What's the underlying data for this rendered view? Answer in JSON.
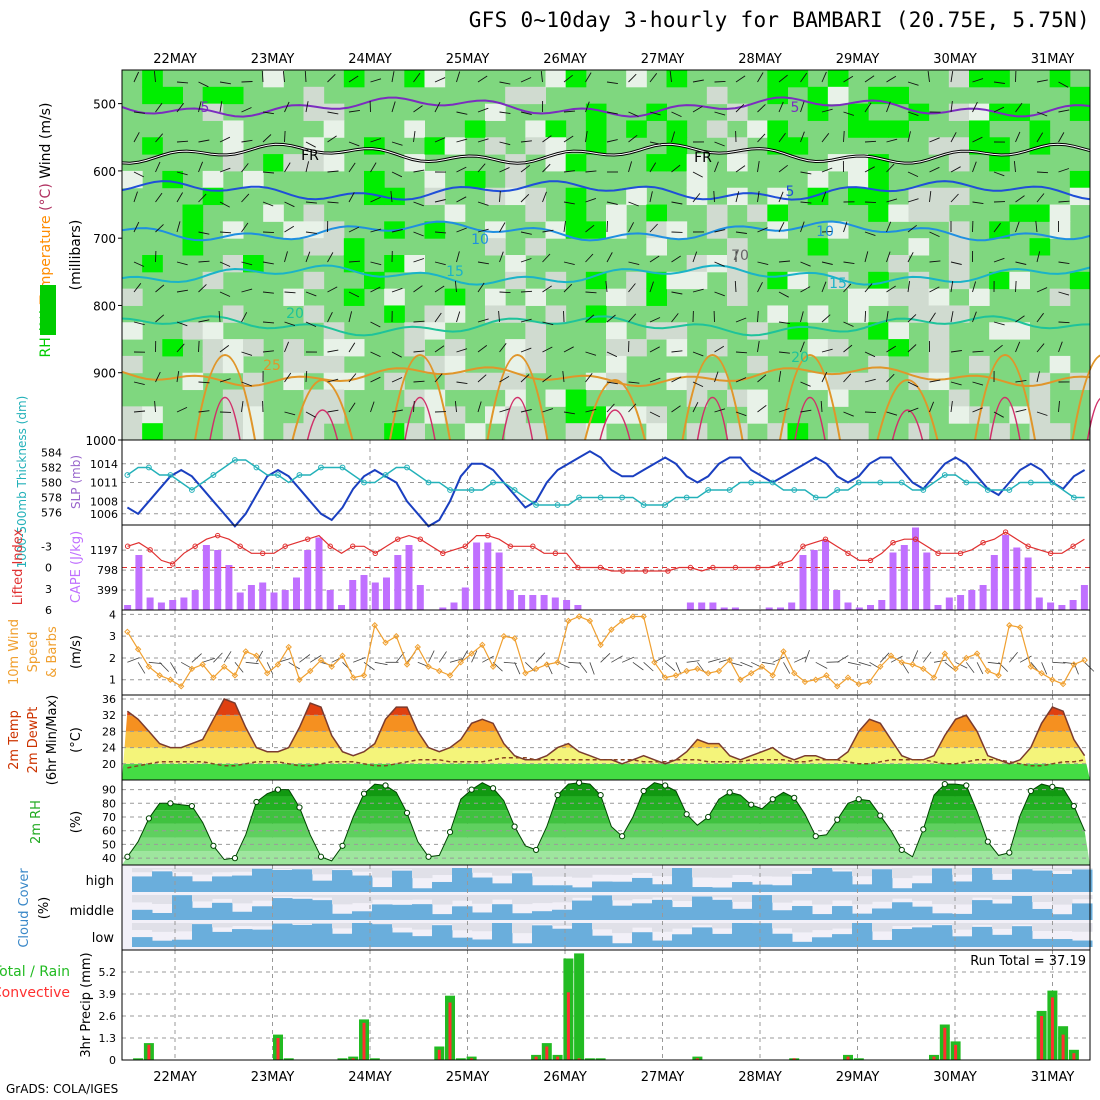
{
  "title": "GFS 0~10day 3-hourly for BAMBARI (20.75E, 5.75N)",
  "footer": "GrADS: COLA/IGES",
  "chart_data": [
    {
      "type": "heatmap",
      "panel": "upper-air",
      "label_parts": [
        {
          "text": "RH (%)",
          "color": "#00cc00"
        },
        {
          "text": "Temperature",
          "color": "#ff8c00"
        },
        {
          "text": "(°C)",
          "color": "#b03060"
        },
        {
          "text": "Wind (m/s)",
          "color": "#000000"
        }
      ],
      "unit_label": "(millibars)",
      "dates": [
        "22MAY",
        "23MAY",
        "24MAY",
        "25MAY",
        "26MAY",
        "27MAY",
        "28MAY",
        "29MAY",
        "30MAY",
        "31MAY"
      ],
      "yticks": [
        500,
        600,
        700,
        800,
        900,
        1000
      ],
      "ylim": [
        1000,
        450
      ],
      "freezing_label": "FR",
      "contour_labels": [
        "5",
        "5",
        "FR",
        "FR",
        "5",
        "10",
        "10",
        "15",
        "15",
        "20",
        "20",
        "25",
        "70"
      ],
      "isotherms": [
        {
          "label": "-5",
          "pressure": 505,
          "color": "#7b2cbf"
        },
        {
          "label": "0",
          "pressure": 575,
          "color": "#000000"
        },
        {
          "label": "5",
          "pressure": 630,
          "color": "#1f4fd8"
        },
        {
          "label": "10",
          "pressure": 690,
          "color": "#1f8fe0"
        },
        {
          "label": "15",
          "pressure": 755,
          "color": "#1ab3c8"
        },
        {
          "label": "20",
          "pressure": 830,
          "color": "#1ec39a"
        },
        {
          "label": "25",
          "pressure": 905,
          "color": "#e0962a"
        }
      ]
    },
    {
      "type": "line",
      "panel": "thickness-slp",
      "label_left": "1000-500mb Thickness (dm)",
      "label_right": "SLP (mb)",
      "yticks_left": [
        576,
        578,
        580,
        582,
        584
      ],
      "yticks_right": [
        1006,
        1008,
        1011,
        1014
      ],
      "series": [
        {
          "name": "SLP (mb)",
          "color": "#1a3fc0",
          "values": [
            1007,
            1006,
            1008,
            1010,
            1012,
            1013,
            1012,
            1010,
            1008,
            1006,
            1004,
            1006,
            1009,
            1012,
            1013,
            1012,
            1010,
            1008,
            1006,
            1005,
            1007,
            1010,
            1012,
            1013,
            1012,
            1011,
            1008,
            1006,
            1004,
            1005,
            1008,
            1012,
            1014,
            1014,
            1013,
            1011,
            1009,
            1007,
            1008,
            1011,
            1013,
            1014,
            1015,
            1016,
            1015,
            1013,
            1012,
            1012,
            1013,
            1014,
            1015,
            1014,
            1012,
            1011,
            1012,
            1014,
            1015,
            1015,
            1013,
            1012,
            1011,
            1012,
            1013,
            1014,
            1015,
            1014,
            1012,
            1011,
            1012,
            1014,
            1015,
            1015,
            1013,
            1011,
            1010,
            1012,
            1014,
            1015,
            1014,
            1012,
            1010,
            1009,
            1011,
            1013,
            1014,
            1013,
            1011,
            1010,
            1012,
            1013
          ]
        },
        {
          "name": "Thickness (dm)",
          "color": "#23b1b9",
          "values": [
            581,
            582,
            582,
            581,
            581,
            580,
            579,
            580,
            581,
            582,
            583,
            583,
            582,
            581,
            581,
            580,
            581,
            581,
            582,
            582,
            582,
            581,
            580,
            580,
            581,
            582,
            582,
            581,
            580,
            580,
            579,
            579,
            579,
            579,
            580,
            580,
            579,
            578,
            577,
            577,
            577,
            577,
            578,
            578,
            578,
            578,
            578,
            578,
            577,
            577,
            577,
            578,
            578,
            578,
            579,
            579,
            579,
            580,
            580,
            580,
            580,
            579,
            579,
            579,
            578,
            578,
            579,
            579,
            580,
            580,
            580,
            580,
            580,
            579,
            579,
            580,
            581,
            581,
            580,
            580,
            579,
            579,
            579,
            580,
            580,
            580,
            580,
            579,
            578,
            578
          ]
        }
      ]
    },
    {
      "type": "bar",
      "panel": "cape-li",
      "label_left": "Lifted Index",
      "label_right": "CAPE (J/kg)",
      "yticks_left": [
        -3,
        0,
        3,
        6
      ],
      "yticks_right": [
        399,
        798,
        1197
      ],
      "series": [
        {
          "name": "CAPE (J/kg)",
          "color": "#c070ff",
          "values": [
            100,
            1100,
            250,
            150,
            200,
            250,
            400,
            1300,
            1200,
            900,
            350,
            500,
            550,
            350,
            400,
            650,
            1200,
            1450,
            400,
            100,
            600,
            700,
            550,
            650,
            1100,
            1300,
            500,
            0,
            50,
            150,
            450,
            1350,
            1350,
            1150,
            400,
            300,
            300,
            300,
            250,
            200,
            100,
            0,
            0,
            0,
            0,
            0,
            0,
            0,
            0,
            0,
            150,
            150,
            150,
            50,
            50,
            0,
            0,
            50,
            50,
            150,
            1100,
            1200,
            1400,
            400,
            150,
            50,
            100,
            200,
            1150,
            1300,
            1650,
            1150,
            100,
            250,
            300,
            400,
            500,
            1100,
            1500,
            1250,
            1050,
            250,
            150,
            100,
            200,
            500
          ]
        },
        {
          "name": "Lifted Index",
          "color": "#e03030",
          "values": [
            -3,
            -3.5,
            -2.5,
            -1,
            -0.5,
            -2,
            -3,
            -4,
            -4.5,
            -4,
            -3,
            -2,
            -2,
            -2,
            -3,
            -3.5,
            -4,
            -4.5,
            -3,
            -2,
            -3,
            -3,
            -2,
            -3,
            -4,
            -4.5,
            -4,
            -3,
            -2,
            -2.5,
            -3,
            -4.5,
            -4.5,
            -4,
            -3,
            -3,
            -3,
            -2,
            -2,
            -2,
            0,
            0,
            0,
            0.5,
            0.5,
            0.5,
            0.5,
            0.5,
            0.5,
            0,
            0,
            0.5,
            0,
            0,
            0,
            0,
            0,
            0,
            -0.5,
            -1,
            -3,
            -3.5,
            -4,
            -3,
            -2,
            -1,
            -1,
            -2,
            -3.5,
            -4,
            -4,
            -3,
            -2,
            -2,
            -2,
            -2.5,
            -3.5,
            -4,
            -5,
            -4,
            -3,
            -2.5,
            -2,
            -2,
            -3,
            -4
          ]
        }
      ]
    },
    {
      "type": "line",
      "panel": "wind10m",
      "label_lines": [
        "10m Wind",
        "Speed",
        "& Barbs"
      ],
      "unit_label": "(m/s)",
      "yticks": [
        1,
        2,
        3,
        4
      ],
      "ylim": [
        0.3,
        4.2
      ],
      "series": [
        {
          "name": "10m Wind Speed",
          "color": "#f0a030",
          "values": [
            3.2,
            2.4,
            1.6,
            1.2,
            1.0,
            0.7,
            1.5,
            1.7,
            1.1,
            1.6,
            1.2,
            2.3,
            2.1,
            1.3,
            1.7,
            2.5,
            1.0,
            1.4,
            1.9,
            1.6,
            2.1,
            1.1,
            1.2,
            3.5,
            2.7,
            3.0,
            1.7,
            2.5,
            1.6,
            1.4,
            1.2,
            1.8,
            2.2,
            2.6,
            1.6,
            3.0,
            2.9,
            1.3,
            1.5,
            1.7,
            1.8,
            3.7,
            3.9,
            3.7,
            2.6,
            3.3,
            3.7,
            3.9,
            3.9,
            1.8,
            1.1,
            1.2,
            1.4,
            1.5,
            1.3,
            1.4,
            1.9,
            1.0,
            1.3,
            1.6,
            1.2,
            2.3,
            1.3,
            0.9,
            1.0,
            1.2,
            0.7,
            1.1,
            0.8,
            0.9,
            1.6,
            2.1,
            1.8,
            1.7,
            1.5,
            1.1,
            2.2,
            1.5,
            2.0,
            2.2,
            1.4,
            1.2,
            3.5,
            3.4,
            1.6,
            1.3,
            1.0,
            0.8,
            1.7,
            1.9
          ]
        }
      ]
    },
    {
      "type": "area",
      "panel": "temp2m",
      "label_lines": [
        "2m Temp",
        "2m DewPt",
        "(6hr Min/Max)"
      ],
      "unit_label": "(°C)",
      "yticks": [
        20,
        24,
        28,
        32,
        36
      ],
      "ylim": [
        16,
        37
      ],
      "series": [
        {
          "name": "2m Temp",
          "color": "#7a3b2e",
          "values": [
            33,
            31,
            28,
            25,
            24,
            24,
            25,
            26,
            31,
            36,
            35,
            29,
            24,
            23,
            23,
            24,
            29,
            35,
            34,
            27,
            23,
            22,
            23,
            25,
            31,
            34,
            34,
            28,
            24,
            23,
            24,
            26,
            30,
            31,
            30,
            25,
            22,
            21,
            21,
            22,
            24,
            25,
            23,
            22,
            21,
            21,
            20,
            21,
            22,
            21,
            20,
            21,
            23,
            26,
            25,
            25,
            22,
            21,
            22,
            23,
            24,
            22,
            21,
            22,
            22,
            21,
            21,
            23,
            28,
            31,
            30,
            26,
            22,
            21,
            21,
            22,
            27,
            31,
            32,
            28,
            22,
            21,
            20,
            21,
            24,
            30,
            34,
            33,
            26,
            22
          ]
        },
        {
          "name": "2m DewPt",
          "color": "#884422",
          "values": [
            19,
            19.5,
            20,
            20.5,
            20.5,
            20.5,
            20.5,
            20.5,
            20,
            19.5,
            19.5,
            20,
            20.5,
            20.5,
            20.5,
            20,
            19.5,
            19.5,
            20,
            20.5,
            20.5,
            20.5,
            20,
            19.5,
            19.5,
            20,
            20.5,
            21,
            21,
            21,
            20.5,
            20.5,
            20.5,
            20.5,
            21,
            21.5,
            21.5,
            21.5,
            21,
            21,
            21,
            21,
            21,
            21,
            21,
            21,
            21,
            21,
            20.5,
            20.5,
            20.5,
            21,
            21,
            21,
            20.5,
            20.5,
            20.5,
            20.5,
            21,
            21,
            21,
            21,
            20.5,
            20.5,
            21,
            21,
            21,
            20.5,
            20,
            20,
            20.5,
            21,
            21,
            21,
            21,
            20.5,
            20,
            20,
            20.5,
            21,
            21,
            21,
            20.5,
            20,
            19.5,
            19.5,
            20,
            20.5,
            20.5,
            21
          ]
        }
      ]
    },
    {
      "type": "area",
      "panel": "rh2m",
      "label": "2m RH",
      "unit_label": "(%)",
      "yticks": [
        40,
        50,
        60,
        70,
        80,
        90
      ],
      "ylim": [
        35,
        97
      ],
      "series": [
        {
          "name": "2m RH",
          "color": "#008000",
          "values": [
            41,
            52,
            69,
            80,
            80,
            79,
            78,
            66,
            49,
            39,
            40,
            57,
            81,
            87,
            90,
            90,
            77,
            57,
            41,
            38,
            49,
            70,
            87,
            94,
            93,
            88,
            73,
            52,
            41,
            42,
            59,
            83,
            90,
            95,
            91,
            82,
            63,
            49,
            46,
            63,
            86,
            94,
            95,
            94,
            86,
            63,
            56,
            70,
            89,
            95,
            93,
            89,
            72,
            64,
            70,
            83,
            88,
            86,
            79,
            76,
            83,
            88,
            84,
            72,
            56,
            57,
            68,
            80,
            83,
            82,
            71,
            60,
            46,
            41,
            61,
            86,
            94,
            94,
            93,
            74,
            52,
            42,
            44,
            71,
            89,
            94,
            92,
            91,
            78,
            60
          ]
        }
      ]
    },
    {
      "type": "heatmap",
      "panel": "cloud",
      "label": "Cloud Cover",
      "unit_label": "(%)",
      "levels": [
        "high",
        "middle",
        "low"
      ]
    },
    {
      "type": "bar",
      "panel": "precip",
      "label_total": "Total / Rain",
      "label_conv": "Convective",
      "unit_label": "3hr Precip (mm)",
      "run_total": "Run Total = 37.19",
      "yticks": [
        0,
        1.3,
        2.6,
        3.9,
        5.2
      ],
      "ylim": [
        0,
        6.5
      ],
      "series": [
        {
          "name": "Total / Rain",
          "color": "#22bb22",
          "values": [
            0,
            0.1,
            1,
            0,
            0,
            0,
            0,
            0,
            0,
            0,
            0,
            0,
            0,
            0,
            1.5,
            0.1,
            0,
            0,
            0,
            0,
            0.1,
            0.2,
            2.4,
            0.1,
            0,
            0,
            0,
            0,
            0,
            0.8,
            3.8,
            0.1,
            0.2,
            0,
            0,
            0,
            0,
            0,
            0.3,
            1.0,
            0.3,
            6.0,
            6.3,
            0.1,
            0.1,
            0,
            0,
            0,
            0,
            0,
            0,
            0,
            0,
            0.2,
            0,
            0,
            0,
            0,
            0,
            0,
            0,
            0,
            0.1,
            0,
            0,
            0,
            0,
            0.3,
            0.1,
            0,
            0,
            0,
            0,
            0,
            0,
            0.3,
            2.1,
            1.1,
            0,
            0,
            0,
            0,
            0,
            0,
            0,
            2.9,
            4.1,
            2.0,
            0.6,
            0
          ]
        },
        {
          "name": "Convective",
          "color": "#ff3030",
          "values": [
            0,
            0,
            0.9,
            0,
            0,
            0,
            0,
            0,
            0,
            0,
            0,
            0,
            0,
            0,
            1.3,
            0,
            0,
            0,
            0,
            0,
            0,
            0.1,
            2.2,
            0,
            0,
            0,
            0,
            0,
            0,
            0.6,
            3.4,
            0,
            0.1,
            0,
            0,
            0,
            0,
            0,
            0.2,
            0.8,
            0.2,
            4.0,
            0.1,
            0,
            0,
            0,
            0,
            0,
            0,
            0,
            0,
            0,
            0,
            0.1,
            0,
            0,
            0,
            0,
            0,
            0,
            0,
            0,
            0.1,
            0,
            0,
            0,
            0,
            0.2,
            0,
            0,
            0,
            0,
            0,
            0,
            0,
            0.2,
            1.9,
            0.9,
            0,
            0,
            0,
            0,
            0,
            0,
            0,
            2.6,
            3.7,
            1.5,
            0.4,
            0
          ]
        }
      ]
    }
  ]
}
